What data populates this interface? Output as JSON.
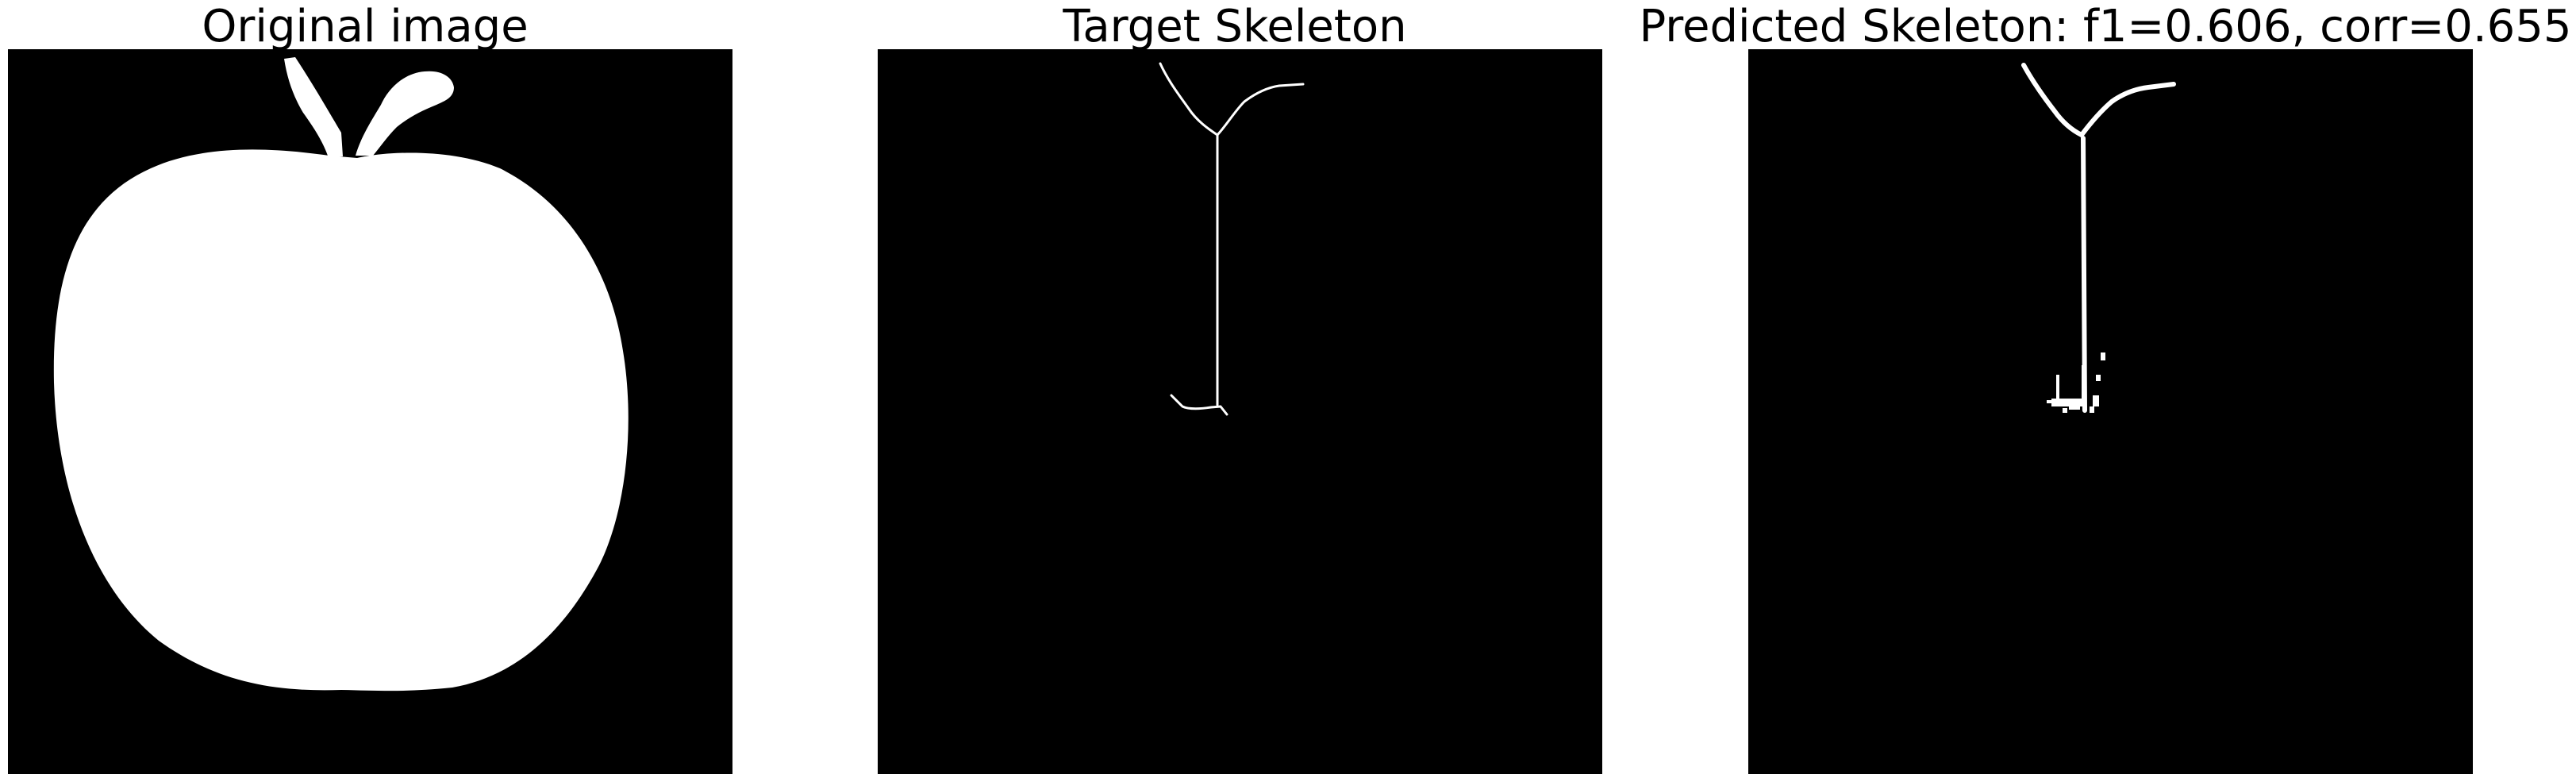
{
  "figure": {
    "panels": [
      {
        "title": "Original image"
      },
      {
        "title": "Target Skeleton"
      },
      {
        "title": "Predicted Skeleton: f1=0.606, corr=0.655"
      }
    ],
    "colors": {
      "background": "#000000",
      "foreground": "#ffffff"
    }
  }
}
